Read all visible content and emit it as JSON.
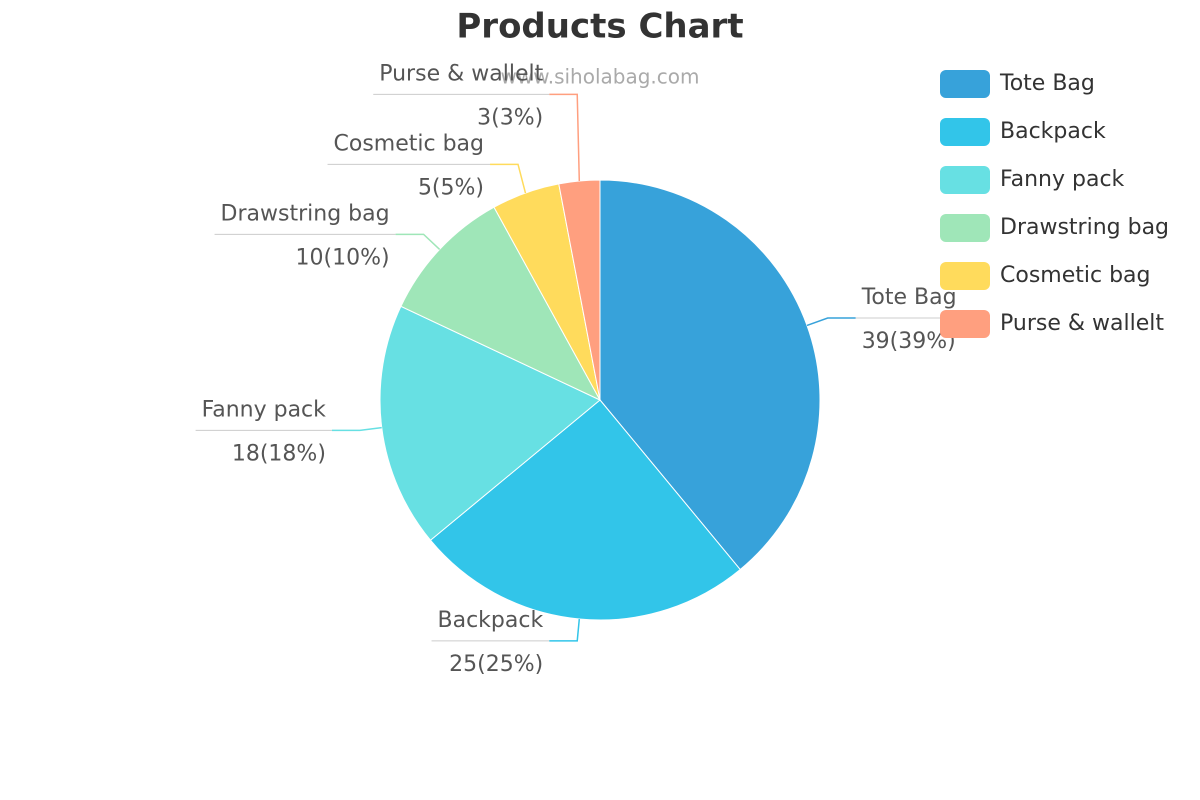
{
  "chart_data": {
    "type": "pie",
    "title": "Products Chart",
    "subtitle": "www.siholabag.com",
    "categories": [
      "Tote Bag",
      "Backpack",
      "Fanny pack",
      "Drawstring bag",
      "Cosmetic bag",
      "Purse & wallelt"
    ],
    "values": [
      39,
      25,
      18,
      10,
      5,
      3
    ],
    "value_labels": [
      "39(39%)",
      "25(25%)",
      "18(18%)",
      "10(10%)",
      "5(5%)",
      "3(3%)"
    ],
    "colors": [
      "#37a2da",
      "#32c5e9",
      "#67e0e3",
      "#9fe6b8",
      "#ffdb5c",
      "#ff9f7f"
    ],
    "legend": "top-right"
  }
}
